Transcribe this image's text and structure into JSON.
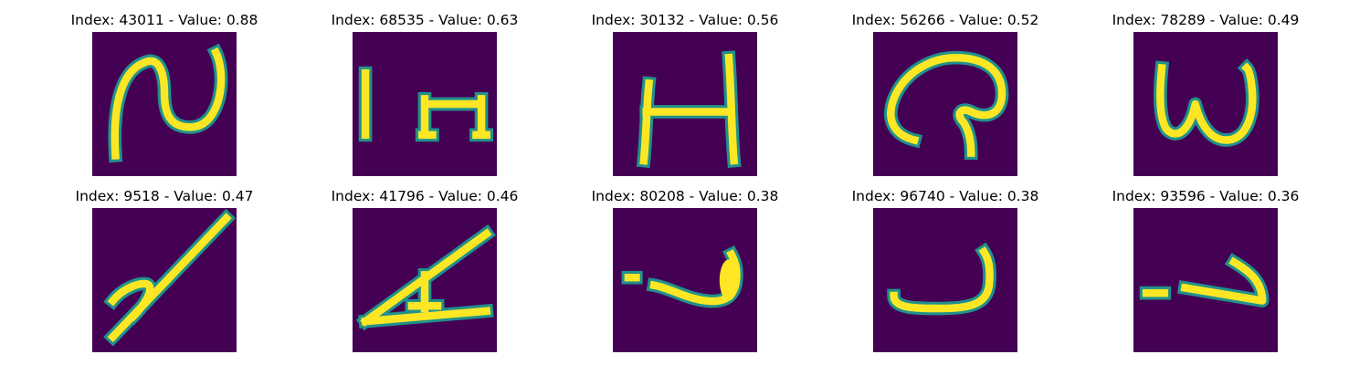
{
  "colors": {
    "background": "#440154",
    "mid": "#21918c",
    "high": "#fde725"
  },
  "panels": [
    {
      "title": "Index: 43011 - Value: 0.88",
      "index": 43011,
      "value": 0.88,
      "glyph": "N-curve"
    },
    {
      "title": "Index: 68535 - Value: 0.63",
      "index": 68535,
      "value": 0.63,
      "glyph": "bar-and-H"
    },
    {
      "title": "Index: 30132 - Value: 0.56",
      "index": 30132,
      "value": 0.56,
      "glyph": "H"
    },
    {
      "title": "Index: 56266 - Value: 0.52",
      "index": 56266,
      "value": 0.52,
      "glyph": "loop-curl"
    },
    {
      "title": "Index: 78289 - Value: 0.49",
      "index": 78289,
      "value": 0.49,
      "glyph": "W"
    },
    {
      "title": "Index: 9518 - Value: 0.47",
      "index": 9518,
      "value": 0.47,
      "glyph": "diagonal-scribble"
    },
    {
      "title": "Index: 41796 - Value: 0.46",
      "index": 41796,
      "value": 0.46,
      "glyph": "triangle-A"
    },
    {
      "title": "Index: 80208 - Value: 0.38",
      "index": 80208,
      "value": 0.38,
      "glyph": "dot-and-hook"
    },
    {
      "title": "Index: 96740 - Value: 0.38",
      "index": 96740,
      "value": 0.38,
      "glyph": "J-curve"
    },
    {
      "title": "Index: 93596 - Value: 0.36",
      "index": 93596,
      "value": 0.36,
      "glyph": "dash-arrow"
    }
  ]
}
